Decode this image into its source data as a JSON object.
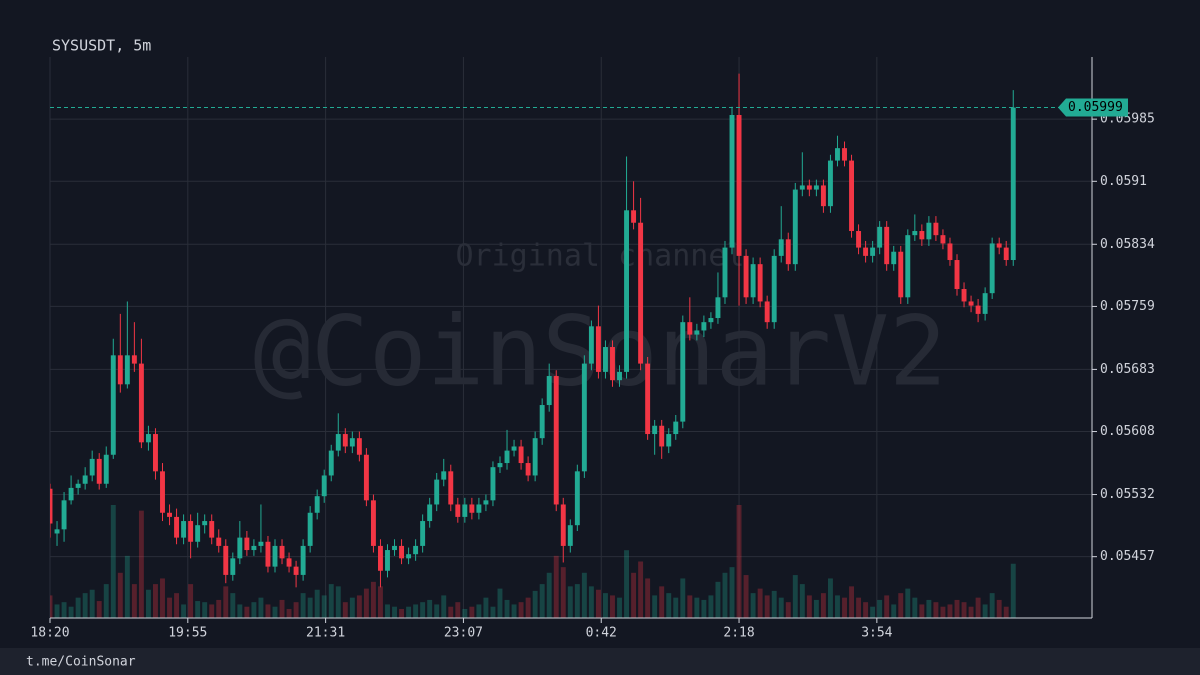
{
  "chart_data": {
    "type": "candlestick",
    "title": "SYSUSDT, 5m",
    "watermark": "@CoinSonarV2",
    "watermark_note": "Original channel",
    "footer": "t.me/CoinSonar",
    "up_color": "#22ab94",
    "down_color": "#f23645",
    "ylim": [
      0.05383,
      0.0606
    ],
    "yticks": [
      0.05457,
      0.05532,
      0.05608,
      0.05683,
      0.05759,
      0.05834,
      0.0591,
      0.05985
    ],
    "xlim": [
      0,
      148.2
    ],
    "xticks": [
      {
        "value": 0,
        "label": "18:20"
      },
      {
        "value": 19.6,
        "label": "19:55"
      },
      {
        "value": 39.2,
        "label": "21:31"
      },
      {
        "value": 58.8,
        "label": "23:07"
      },
      {
        "value": 78.4,
        "label": "0:42"
      },
      {
        "value": 98,
        "label": "2:18"
      },
      {
        "value": 117.6,
        "label": "3:54"
      }
    ],
    "grid": true,
    "volume_lim": [
      0,
      100
    ],
    "candles": [
      [
        0.05539,
        0.05545,
        0.0548,
        0.05497
      ],
      [
        0.05485,
        0.055,
        0.0547,
        0.0549
      ],
      [
        0.0549,
        0.05535,
        0.05475,
        0.05525
      ],
      [
        0.05525,
        0.05555,
        0.0552,
        0.0554
      ],
      [
        0.0554,
        0.0555,
        0.05532,
        0.05545
      ],
      [
        0.05545,
        0.05565,
        0.05538,
        0.05555
      ],
      [
        0.05555,
        0.05585,
        0.05548,
        0.05575
      ],
      [
        0.05575,
        0.05582,
        0.05538,
        0.05545
      ],
      [
        0.05545,
        0.0559,
        0.0554,
        0.0558
      ],
      [
        0.0558,
        0.0572,
        0.05575,
        0.057
      ],
      [
        0.057,
        0.0575,
        0.05655,
        0.05665
      ],
      [
        0.05665,
        0.05765,
        0.0566,
        0.057
      ],
      [
        0.057,
        0.0574,
        0.0568,
        0.0569
      ],
      [
        0.0569,
        0.0572,
        0.05588,
        0.05595
      ],
      [
        0.05595,
        0.05615,
        0.05585,
        0.05605
      ],
      [
        0.05605,
        0.05612,
        0.0555,
        0.0556
      ],
      [
        0.0556,
        0.0557,
        0.055,
        0.0551
      ],
      [
        0.0551,
        0.0552,
        0.05495,
        0.05505
      ],
      [
        0.05505,
        0.05515,
        0.05472,
        0.0548
      ],
      [
        0.0548,
        0.05508,
        0.05472,
        0.055
      ],
      [
        0.055,
        0.05508,
        0.05455,
        0.05475
      ],
      [
        0.05475,
        0.0551,
        0.05468,
        0.05495
      ],
      [
        0.05495,
        0.05508,
        0.05485,
        0.055
      ],
      [
        0.055,
        0.05508,
        0.05472,
        0.0548
      ],
      [
        0.0548,
        0.0549,
        0.05462,
        0.0547
      ],
      [
        0.0547,
        0.05478,
        0.05425,
        0.05435
      ],
      [
        0.05435,
        0.05462,
        0.05428,
        0.05455
      ],
      [
        0.05455,
        0.055,
        0.05448,
        0.0548
      ],
      [
        0.0548,
        0.05488,
        0.05458,
        0.05465
      ],
      [
        0.05465,
        0.05478,
        0.05458,
        0.0547
      ],
      [
        0.0547,
        0.0552,
        0.05462,
        0.05475
      ],
      [
        0.05475,
        0.05482,
        0.05438,
        0.05445
      ],
      [
        0.05445,
        0.05478,
        0.05438,
        0.0547
      ],
      [
        0.0547,
        0.05478,
        0.05448,
        0.05455
      ],
      [
        0.05455,
        0.05462,
        0.05438,
        0.05445
      ],
      [
        0.05445,
        0.05452,
        0.0542,
        0.05435
      ],
      [
        0.05435,
        0.05478,
        0.05428,
        0.0547
      ],
      [
        0.0547,
        0.05518,
        0.05462,
        0.0551
      ],
      [
        0.0551,
        0.05538,
        0.05502,
        0.0553
      ],
      [
        0.0553,
        0.05562,
        0.05522,
        0.05555
      ],
      [
        0.05555,
        0.05592,
        0.05548,
        0.05585
      ],
      [
        0.05585,
        0.0563,
        0.05578,
        0.05605
      ],
      [
        0.05605,
        0.05612,
        0.05582,
        0.0559
      ],
      [
        0.0559,
        0.05608,
        0.05582,
        0.056
      ],
      [
        0.056,
        0.05608,
        0.05572,
        0.0558
      ],
      [
        0.0558,
        0.05588,
        0.05518,
        0.05525
      ],
      [
        0.05525,
        0.05532,
        0.05462,
        0.0547
      ],
      [
        0.0547,
        0.05478,
        0.0542,
        0.0544
      ],
      [
        0.0544,
        0.05472,
        0.05432,
        0.05465
      ],
      [
        0.05465,
        0.05478,
        0.05458,
        0.0547
      ],
      [
        0.0547,
        0.05478,
        0.05448,
        0.05455
      ],
      [
        0.05455,
        0.05468,
        0.05448,
        0.0546
      ],
      [
        0.0546,
        0.05478,
        0.05452,
        0.0547
      ],
      [
        0.0547,
        0.05508,
        0.05462,
        0.055
      ],
      [
        0.055,
        0.05528,
        0.05492,
        0.0552
      ],
      [
        0.0552,
        0.05558,
        0.05512,
        0.0555
      ],
      [
        0.0555,
        0.05575,
        0.05542,
        0.0556
      ],
      [
        0.0556,
        0.05568,
        0.05512,
        0.0552
      ],
      [
        0.0552,
        0.05528,
        0.05498,
        0.05505
      ],
      [
        0.05505,
        0.05528,
        0.05498,
        0.0552
      ],
      [
        0.0552,
        0.05528,
        0.05502,
        0.0551
      ],
      [
        0.0551,
        0.05528,
        0.05502,
        0.0552
      ],
      [
        0.0552,
        0.05532,
        0.05512,
        0.05525
      ],
      [
        0.05525,
        0.05572,
        0.05518,
        0.05565
      ],
      [
        0.05565,
        0.05578,
        0.05558,
        0.0557
      ],
      [
        0.0557,
        0.0561,
        0.05562,
        0.05585
      ],
      [
        0.05585,
        0.05598,
        0.05578,
        0.0559
      ],
      [
        0.0559,
        0.05598,
        0.05562,
        0.0557
      ],
      [
        0.0557,
        0.05578,
        0.05548,
        0.05555
      ],
      [
        0.05555,
        0.05608,
        0.05548,
        0.056
      ],
      [
        0.056,
        0.05648,
        0.05592,
        0.0564
      ],
      [
        0.0564,
        0.0569,
        0.05632,
        0.05675
      ],
      [
        0.05675,
        0.05682,
        0.05512,
        0.0552
      ],
      [
        0.0552,
        0.05528,
        0.0545,
        0.0547
      ],
      [
        0.0547,
        0.05502,
        0.05462,
        0.05495
      ],
      [
        0.05495,
        0.05568,
        0.05488,
        0.0556
      ],
      [
        0.0556,
        0.057,
        0.05552,
        0.0569
      ],
      [
        0.0569,
        0.05742,
        0.05682,
        0.05735
      ],
      [
        0.05735,
        0.0576,
        0.05672,
        0.0568
      ],
      [
        0.0568,
        0.05718,
        0.05672,
        0.0571
      ],
      [
        0.0571,
        0.05718,
        0.05662,
        0.0567
      ],
      [
        0.0567,
        0.05688,
        0.05662,
        0.0568
      ],
      [
        0.0568,
        0.0594,
        0.05672,
        0.05875
      ],
      [
        0.05875,
        0.0591,
        0.05852,
        0.0586
      ],
      [
        0.0586,
        0.0589,
        0.05682,
        0.0569
      ],
      [
        0.0569,
        0.05698,
        0.05598,
        0.05605
      ],
      [
        0.05605,
        0.05622,
        0.0558,
        0.05615
      ],
      [
        0.05615,
        0.05622,
        0.05575,
        0.0559
      ],
      [
        0.0559,
        0.05612,
        0.05582,
        0.05605
      ],
      [
        0.05605,
        0.05628,
        0.05598,
        0.0562
      ],
      [
        0.0562,
        0.05748,
        0.05612,
        0.0574
      ],
      [
        0.0574,
        0.0577,
        0.05718,
        0.05725
      ],
      [
        0.05725,
        0.05738,
        0.05718,
        0.0573
      ],
      [
        0.0573,
        0.05748,
        0.05722,
        0.0574
      ],
      [
        0.0574,
        0.05752,
        0.05732,
        0.05745
      ],
      [
        0.05745,
        0.058,
        0.05738,
        0.0577
      ],
      [
        0.0577,
        0.05838,
        0.05762,
        0.0583
      ],
      [
        0.0583,
        0.06,
        0.05822,
        0.0599
      ],
      [
        0.0599,
        0.0604,
        0.0576,
        0.0582
      ],
      [
        0.0582,
        0.05828,
        0.05762,
        0.0577
      ],
      [
        0.0577,
        0.05818,
        0.05762,
        0.0581
      ],
      [
        0.0581,
        0.05818,
        0.05758,
        0.05765
      ],
      [
        0.05765,
        0.05772,
        0.05732,
        0.0574
      ],
      [
        0.0574,
        0.05828,
        0.05732,
        0.0582
      ],
      [
        0.0582,
        0.0588,
        0.05812,
        0.0584
      ],
      [
        0.0584,
        0.05848,
        0.05802,
        0.0581
      ],
      [
        0.0581,
        0.05908,
        0.05802,
        0.059
      ],
      [
        0.059,
        0.05945,
        0.05892,
        0.05905
      ],
      [
        0.05905,
        0.05912,
        0.05892,
        0.059
      ],
      [
        0.059,
        0.05912,
        0.05892,
        0.05905
      ],
      [
        0.05905,
        0.05912,
        0.05872,
        0.0588
      ],
      [
        0.0588,
        0.05942,
        0.05872,
        0.05935
      ],
      [
        0.05935,
        0.05965,
        0.05928,
        0.0595
      ],
      [
        0.0595,
        0.05958,
        0.05928,
        0.05935
      ],
      [
        0.05935,
        0.05942,
        0.05842,
        0.0585
      ],
      [
        0.0585,
        0.05858,
        0.05822,
        0.0583
      ],
      [
        0.0583,
        0.05838,
        0.05812,
        0.0582
      ],
      [
        0.0582,
        0.05838,
        0.05812,
        0.0583
      ],
      [
        0.0583,
        0.05862,
        0.05822,
        0.05855
      ],
      [
        0.05855,
        0.05862,
        0.05802,
        0.0581
      ],
      [
        0.0581,
        0.05832,
        0.05802,
        0.05825
      ],
      [
        0.05825,
        0.05832,
        0.05762,
        0.0577
      ],
      [
        0.0577,
        0.05852,
        0.05762,
        0.05845
      ],
      [
        0.05845,
        0.0587,
        0.05838,
        0.0585
      ],
      [
        0.0585,
        0.05858,
        0.05832,
        0.0584
      ],
      [
        0.0584,
        0.05868,
        0.05832,
        0.0586
      ],
      [
        0.0586,
        0.05868,
        0.05838,
        0.05845
      ],
      [
        0.05845,
        0.05852,
        0.05828,
        0.05835
      ],
      [
        0.05835,
        0.05842,
        0.05808,
        0.05815
      ],
      [
        0.05815,
        0.05822,
        0.05772,
        0.0578
      ],
      [
        0.0578,
        0.05788,
        0.05758,
        0.05765
      ],
      [
        0.05765,
        0.05772,
        0.05752,
        0.0576
      ],
      [
        0.0576,
        0.05768,
        0.0574,
        0.0575
      ],
      [
        0.0575,
        0.05782,
        0.05742,
        0.05775
      ],
      [
        0.05775,
        0.05842,
        0.05768,
        0.05835
      ],
      [
        0.05835,
        0.05842,
        0.05822,
        0.0583
      ],
      [
        0.0583,
        0.05838,
        0.05808,
        0.05815
      ],
      [
        0.05815,
        0.0602,
        0.05808,
        0.05999
      ]
    ],
    "volumes": [
      20,
      12,
      14,
      10,
      18,
      22,
      25,
      15,
      30,
      100,
      40,
      55,
      30,
      95,
      25,
      30,
      35,
      18,
      22,
      12,
      30,
      15,
      14,
      12,
      16,
      28,
      22,
      12,
      10,
      14,
      18,
      12,
      10,
      16,
      8,
      14,
      22,
      18,
      25,
      20,
      30,
      28,
      14,
      18,
      20,
      26,
      32,
      28,
      12,
      10,
      8,
      10,
      12,
      14,
      16,
      12,
      20,
      10,
      14,
      8,
      10,
      12,
      18,
      10,
      26,
      16,
      12,
      14,
      18,
      24,
      30,
      40,
      55,
      45,
      28,
      30,
      40,
      28,
      25,
      22,
      20,
      18,
      60,
      40,
      50,
      35,
      20,
      28,
      22,
      18,
      35,
      20,
      18,
      16,
      20,
      32,
      40,
      45,
      100,
      38,
      22,
      26,
      20,
      24,
      18,
      14,
      38,
      30,
      20,
      16,
      22,
      35,
      20,
      18,
      28,
      18,
      14,
      10,
      16,
      20,
      12,
      22,
      26,
      18,
      12,
      16,
      14,
      10,
      12,
      16,
      14,
      10,
      18,
      12,
      22,
      16,
      10,
      48
    ]
  }
}
